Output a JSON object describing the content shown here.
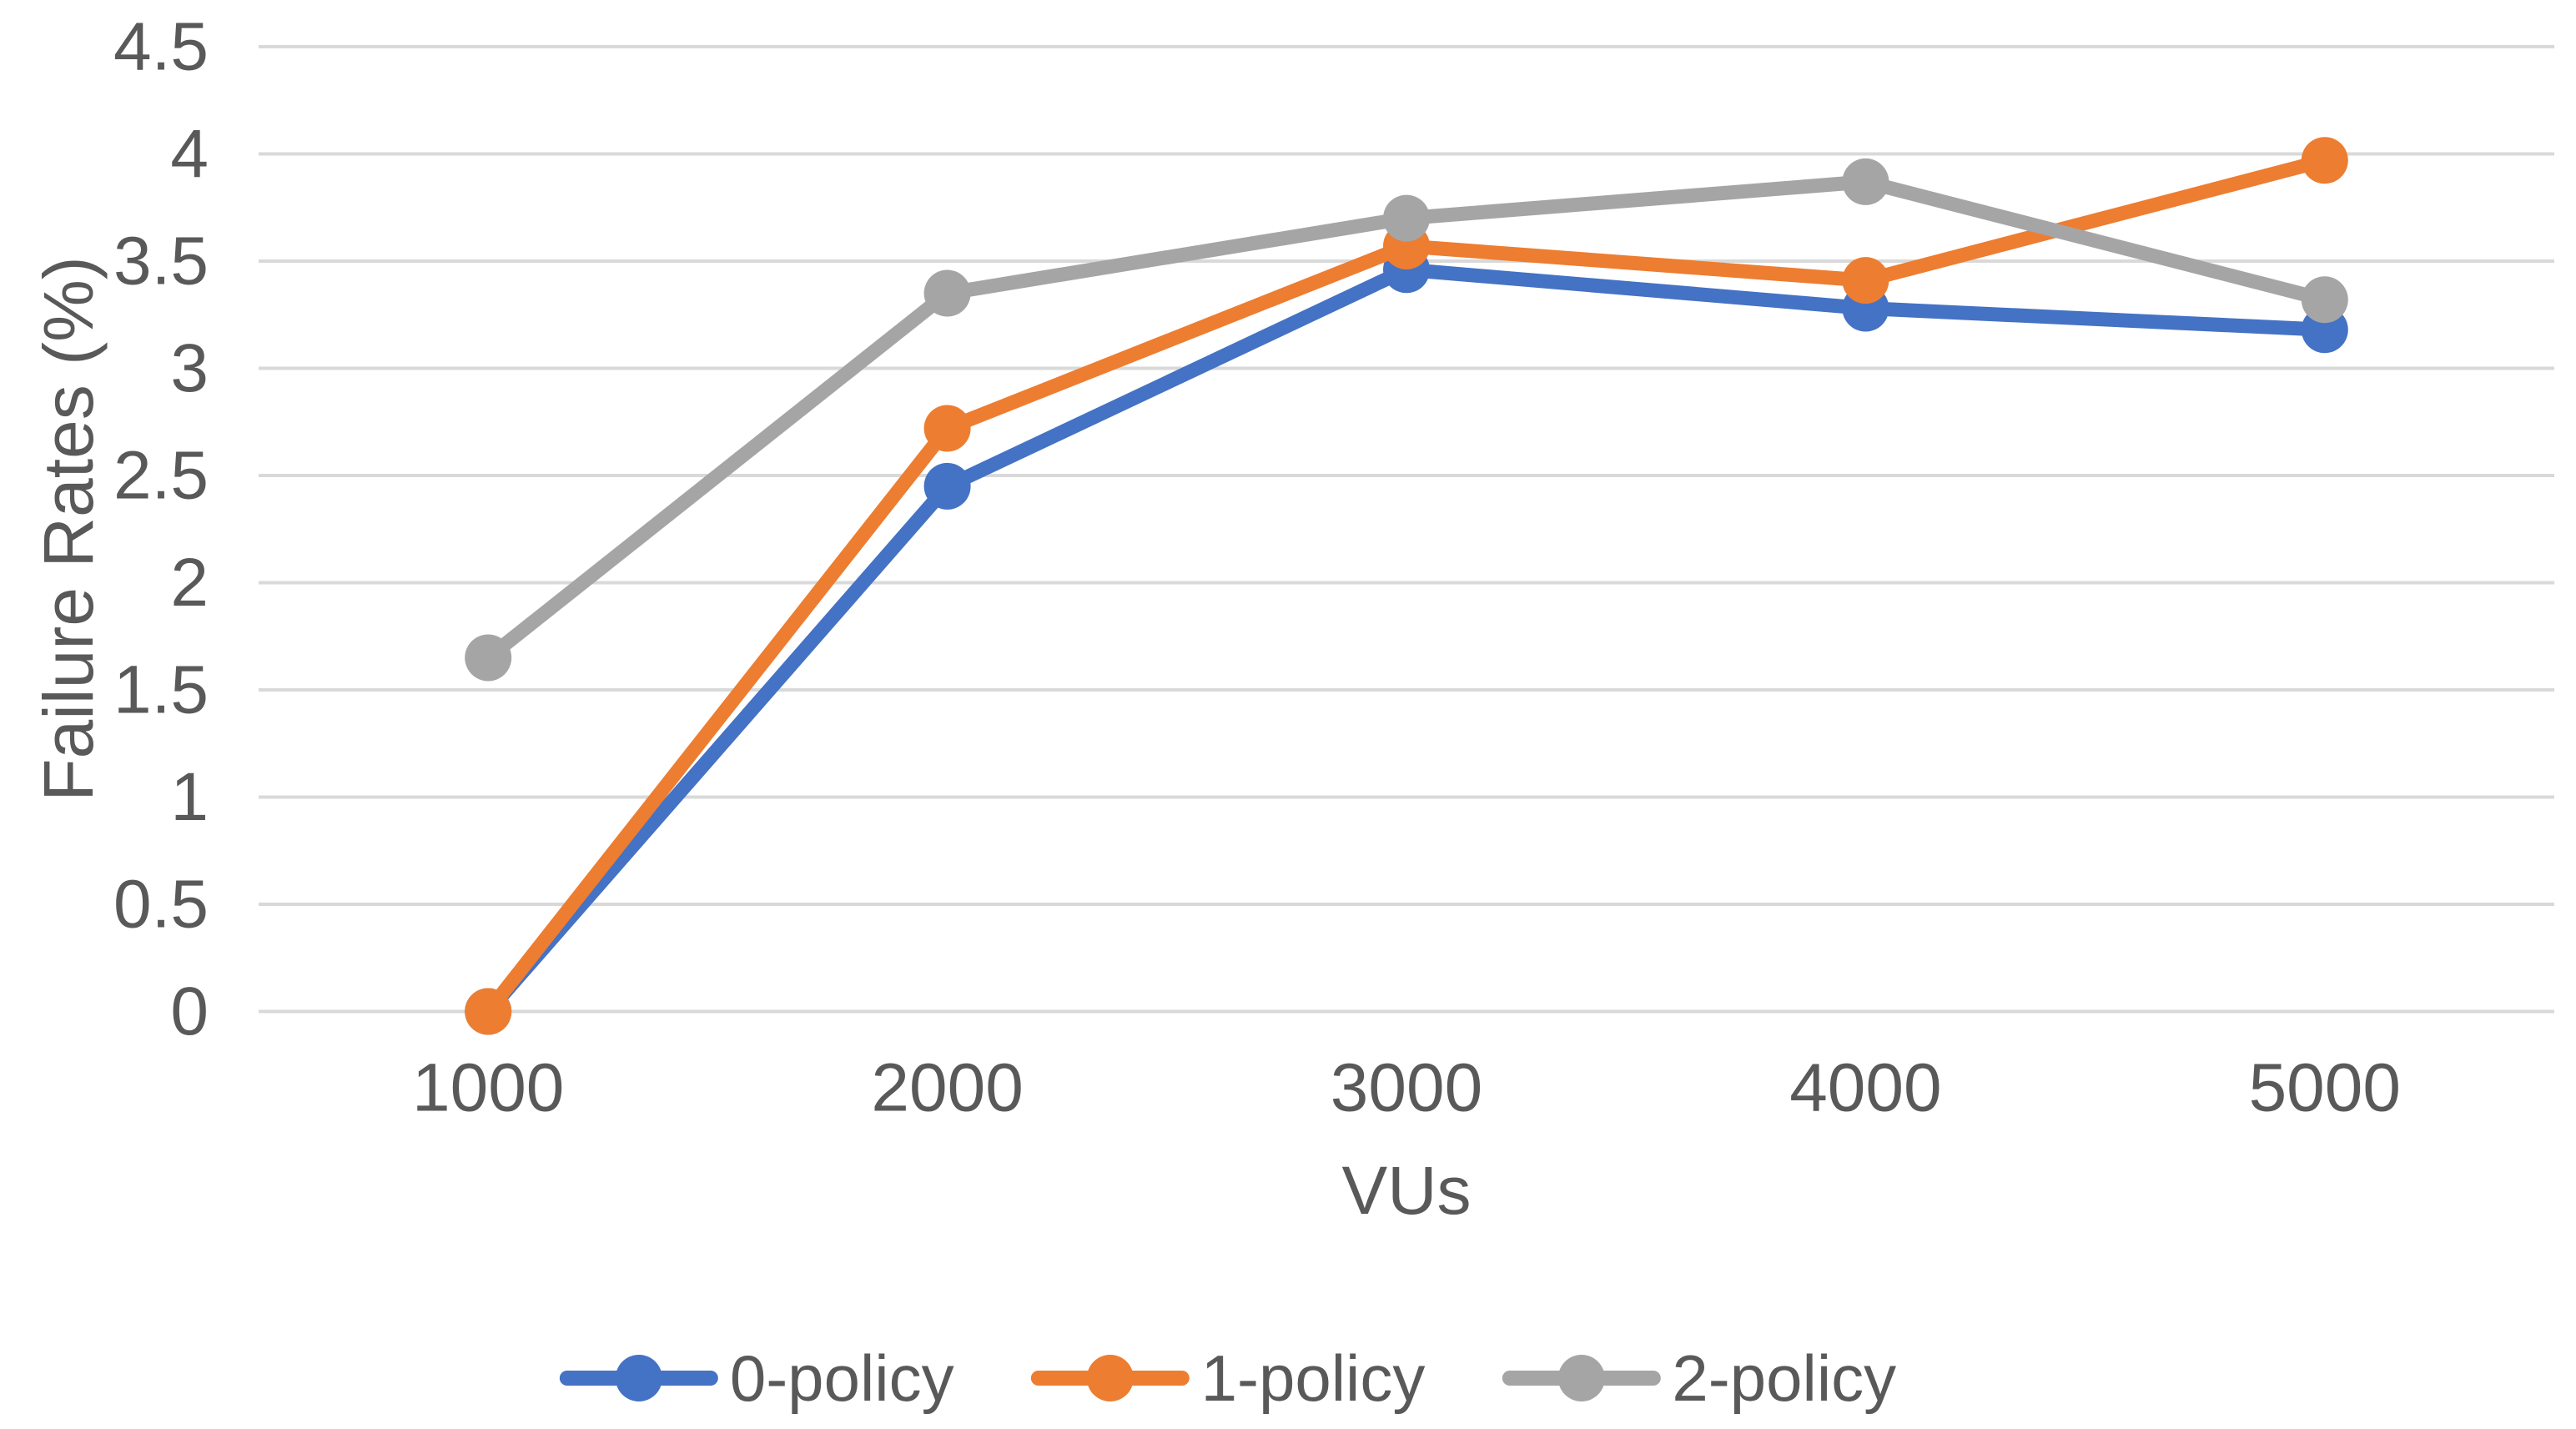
{
  "figure": {
    "background": "#FFFFFF",
    "text_color": "#595959",
    "gridline_color": "#D9D9D9"
  },
  "chart_data": {
    "type": "line",
    "title": "",
    "xlabel": "VUs",
    "ylabel": "Failure Rates (%)",
    "categories": [
      1000,
      2000,
      3000,
      4000,
      5000
    ],
    "x_tick_labels": [
      "1000",
      "2000",
      "3000",
      "4000",
      "5000"
    ],
    "series": [
      {
        "name": "0-policy",
        "color": "#4472C4",
        "values": [
          0,
          2.45,
          3.46,
          3.28,
          3.18
        ]
      },
      {
        "name": "1-policy",
        "color": "#ED7D31",
        "values": [
          0,
          2.72,
          3.57,
          3.41,
          3.97
        ]
      },
      {
        "name": "2-policy",
        "color": "#A5A5A5",
        "values": [
          1.65,
          3.35,
          3.7,
          3.87,
          3.32
        ]
      }
    ],
    "ylim": [
      0,
      4.5
    ],
    "y_tick_step": 0.5,
    "y_ticks": [
      "0",
      "0.5",
      "1",
      "1.5",
      "2",
      "2.5",
      "3",
      "3.5",
      "4",
      "4.5"
    ],
    "grid": "horizontal",
    "legend_position": "bottom",
    "marker": "circle"
  }
}
